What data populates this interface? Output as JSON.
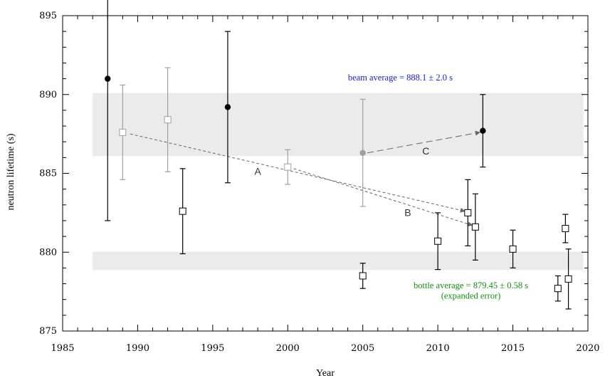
{
  "chart_data": {
    "type": "scatter",
    "xlabel": "Year",
    "ylabel": "neutron lifetime (s)",
    "xlim": [
      1985,
      2020
    ],
    "ylim": [
      875,
      895
    ],
    "xticks": [
      1985,
      1990,
      1995,
      2000,
      2005,
      2010,
      2015,
      2020
    ],
    "yticks": [
      875,
      880,
      885,
      890,
      895
    ],
    "bands": [
      {
        "name": "beam average",
        "center": 888.1,
        "halfwidth": 2.0,
        "x": [
          1987,
          2019.7
        ],
        "color": "#ebebeb"
      },
      {
        "name": "bottle average",
        "center": 879.45,
        "halfwidth": 0.58,
        "x": [
          1987,
          2019.7
        ],
        "color": "#ebebeb"
      }
    ],
    "series": [
      {
        "marker": "filled-circle",
        "color": "#000000",
        "points": [
          {
            "x": 1988,
            "y": 891.0,
            "err": 9.0
          },
          {
            "x": 1996,
            "y": 889.2,
            "err": 4.8
          },
          {
            "x": 2013,
            "y": 887.7,
            "err": 2.3
          }
        ]
      },
      {
        "marker": "filled-circle",
        "color": "#a0a0a0",
        "points": [
          {
            "x": 2005,
            "y": 886.3,
            "err": 3.4
          }
        ]
      },
      {
        "marker": "open-square",
        "color": "#a0a0a0",
        "points": [
          {
            "x": 1989,
            "y": 887.6,
            "err": 3.0
          },
          {
            "x": 1992,
            "y": 888.4,
            "err": 3.3
          },
          {
            "x": 2000,
            "y": 885.4,
            "err": 1.1
          }
        ]
      },
      {
        "marker": "open-square",
        "color": "#000000",
        "points": [
          {
            "x": 1993,
            "y": 882.6,
            "err": 2.7
          },
          {
            "x": 2005,
            "y": 878.5,
            "err": 0.8
          },
          {
            "x": 2010,
            "y": 880.7,
            "err": 1.8
          },
          {
            "x": 2012,
            "y": 882.5,
            "err": 2.1
          },
          {
            "x": 2012.5,
            "y": 881.6,
            "err": 2.1
          },
          {
            "x": 2015,
            "y": 880.2,
            "err": 1.2
          },
          {
            "x": 2018,
            "y": 877.7,
            "err": 0.8
          },
          {
            "x": 2018.5,
            "y": 881.5,
            "err": 0.9
          },
          {
            "x": 2018.7,
            "y": 878.3,
            "err": 1.9
          }
        ]
      }
    ],
    "arrows": [
      {
        "label": "A",
        "from": [
          1989.5,
          887.5
        ],
        "to": [
          2011.8,
          882.6
        ],
        "label_pos": [
          1998,
          884.9
        ]
      },
      {
        "label": "B",
        "from": [
          2000.4,
          885.3
        ],
        "to": [
          2012.3,
          881.7
        ],
        "label_pos": [
          2008,
          882.3
        ]
      },
      {
        "label": "C",
        "from": [
          2005.3,
          886.3
        ],
        "to": [
          2012.8,
          887.6
        ],
        "label_pos": [
          2009.2,
          886.2
        ]
      }
    ],
    "annotations": [
      {
        "id": "beam",
        "text": "beam average = 888.1 ± 2.0 s",
        "x": 2007.5,
        "y": 890.9,
        "color": "#1a1adc"
      },
      {
        "id": "bottle1",
        "text": "bottle average = 879.45 ± 0.58 s",
        "x": 2012.2,
        "y": 877.7,
        "color": "#109010"
      },
      {
        "id": "bottle2",
        "text": "(expanded error)",
        "x": 2012.2,
        "y": 877.05,
        "color": "#109010"
      }
    ]
  }
}
